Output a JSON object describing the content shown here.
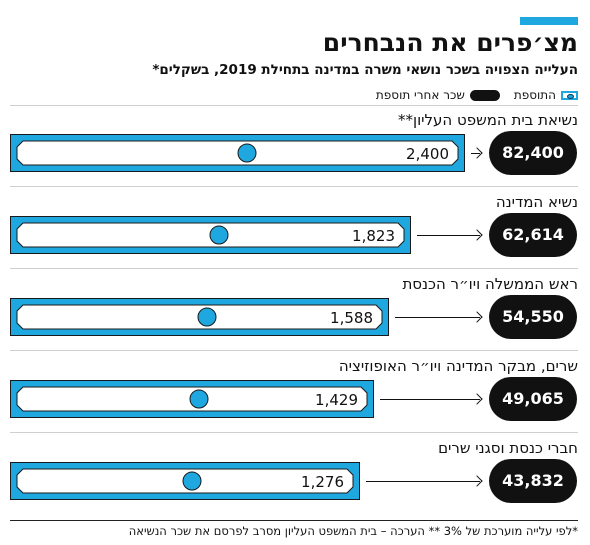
{
  "header": {
    "title": "מצ׳פרים את הנבחרים",
    "subtitle": "העלייה הצפויה בשכר נושאי משרה במדינה בתחילת 2019, בשקלים*"
  },
  "legend": {
    "raise_label": "התוספת",
    "salary_label": "שכר אחרי תוספת"
  },
  "colors": {
    "accent": "#1fa8e0",
    "pill": "#111111",
    "bill_border": "#1a1a1a"
  },
  "chart_data": {
    "type": "bar",
    "title": "מצ׳פרים את הנבחרים",
    "subtitle": "העלייה הצפויה בשכר נושאי משרה במדינה בתחילת 2019, בשקלים*",
    "categories": [
      "נשיאת בית המשפט העליון**",
      "נשיא המדינה",
      "ראש הממשלה ויו״ר הכנסת",
      "שרים, מבקר המדינה ויו״ר האופוזיציה",
      "חברי כנסת וסגני שרים"
    ],
    "series": [
      {
        "name": "התוספת",
        "values": [
          2400,
          1823,
          1588,
          1429,
          1276
        ],
        "labels": [
          "2,400",
          "1,823",
          "1,588",
          "1,429",
          "1,276"
        ]
      },
      {
        "name": "שכר אחרי תוספת",
        "values": [
          82400,
          62614,
          54550,
          49065,
          43832
        ],
        "labels": [
          "82,400",
          "62,614",
          "54,550",
          "49,065",
          "43,832"
        ]
      }
    ],
    "xlabel": "",
    "ylabel": ""
  },
  "footnote": "*לפי עלייה מוערכת של 3% ** הערכה – בית המשפט העליון מסרב לפרסם את שכר הנשיאה"
}
